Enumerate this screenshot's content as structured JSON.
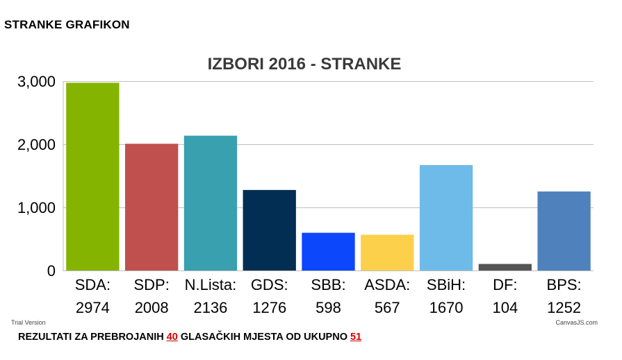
{
  "page": {
    "heading": "STRANKE GRAFIKON",
    "footer": {
      "part1": "REZULTATI ZA PREBROJANIH ",
      "counted": "40",
      "part2": " GLASAČKIH MJESTA OD UKUPNO ",
      "total": "51"
    },
    "watermark_left": "Trial Version",
    "watermark_right": "CanvasJS.com"
  },
  "chart_data": {
    "type": "bar",
    "title": "IZBORI 2016 - STRANKE",
    "xlabel": "",
    "ylabel": "",
    "ylim": [
      0,
      3000
    ],
    "yticks": [
      0,
      1000,
      2000,
      3000
    ],
    "ytick_labels": [
      "0",
      "1,000",
      "2,000",
      "3,000"
    ],
    "grid": true,
    "categories": [
      "SDA:",
      "SDP:",
      "N.Lista:",
      "GDS:",
      "SBB:",
      "ASDA:",
      "SBiH:",
      "DF:",
      "BPS:"
    ],
    "values": [
      2974,
      2008,
      2136,
      1276,
      598,
      567,
      1670,
      104,
      1252
    ],
    "colors": [
      "#84b300",
      "#c0504d",
      "#38a0ae",
      "#012e52",
      "#0c47fb",
      "#fdd04b",
      "#6ebae9",
      "#555555",
      "#4f81bd"
    ]
  }
}
